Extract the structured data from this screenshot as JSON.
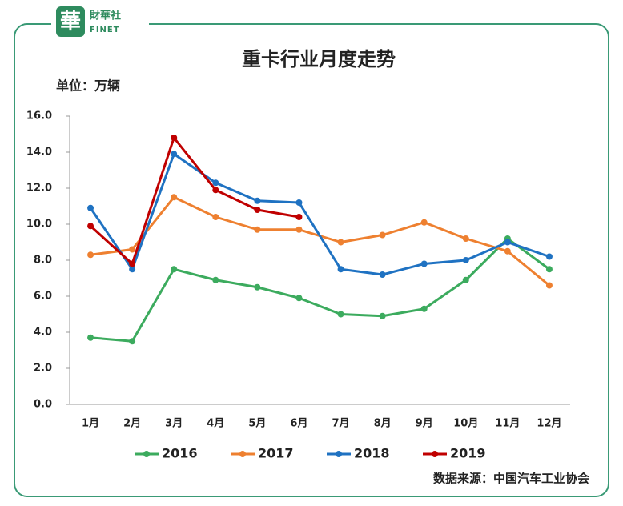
{
  "logo": {
    "mark": "華",
    "name": "財華社",
    "name_en": "FINET"
  },
  "chart_data": {
    "type": "line",
    "title": "重卡行业月度走势",
    "unit": "单位：万辆",
    "source": "数据来源：中国汽车工业协会",
    "categories": [
      "1月",
      "2月",
      "3月",
      "4月",
      "5月",
      "6月",
      "7月",
      "8月",
      "9月",
      "10月",
      "11月",
      "12月"
    ],
    "series": [
      {
        "name": "2016",
        "color": "#3cab5e",
        "values": [
          3.7,
          3.5,
          7.5,
          6.9,
          6.5,
          5.9,
          5.0,
          4.9,
          5.3,
          6.9,
          9.2,
          7.5
        ]
      },
      {
        "name": "2017",
        "color": "#ee8030",
        "values": [
          8.3,
          8.6,
          11.5,
          10.4,
          9.7,
          9.7,
          9.0,
          9.4,
          10.1,
          9.2,
          8.5,
          6.6
        ]
      },
      {
        "name": "2018",
        "color": "#1f72c2",
        "values": [
          10.9,
          7.5,
          13.9,
          12.3,
          11.3,
          11.2,
          7.5,
          7.2,
          7.8,
          8.0,
          9.0,
          8.2
        ]
      },
      {
        "name": "2019",
        "color": "#c00000",
        "values": [
          9.9,
          7.8,
          14.8,
          11.9,
          10.8,
          10.4,
          null,
          null,
          null,
          null,
          null,
          null
        ]
      }
    ],
    "ylim": [
      0,
      16
    ],
    "yticks": [
      {
        "value": 0,
        "label": "0.0"
      },
      {
        "value": 2,
        "label": "2.0"
      },
      {
        "value": 4,
        "label": "4.0"
      },
      {
        "value": 6,
        "label": "6.0"
      },
      {
        "value": 8,
        "label": "8.0"
      },
      {
        "value": 10,
        "label": "10.0"
      },
      {
        "value": 12,
        "label": "12.0"
      },
      {
        "value": 14,
        "label": "14.0"
      },
      {
        "value": 16,
        "label": "16.0"
      }
    ],
    "grid": false,
    "legend": "bottom"
  }
}
